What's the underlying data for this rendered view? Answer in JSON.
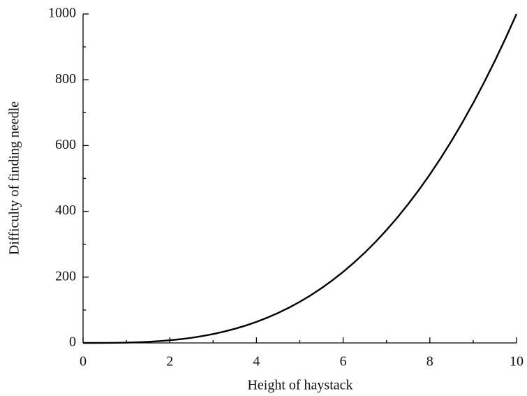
{
  "chart_data": {
    "type": "line",
    "xlabel": "Height of haystack",
    "ylabel": "Difficulty of finding needle",
    "x": [
      0,
      0.25,
      0.5,
      0.75,
      1,
      1.25,
      1.5,
      1.75,
      2,
      2.25,
      2.5,
      2.75,
      3,
      3.25,
      3.5,
      3.75,
      4,
      4.25,
      4.5,
      4.75,
      5,
      5.25,
      5.5,
      5.75,
      6,
      6.25,
      6.5,
      6.75,
      7,
      7.25,
      7.5,
      7.75,
      8,
      8.25,
      8.5,
      8.75,
      9,
      9.25,
      9.5,
      9.75,
      10
    ],
    "series": [
      {
        "color": "#000000",
        "values": [
          0,
          0,
          0.1,
          0.4,
          1,
          2,
          3.4,
          5.4,
          8,
          11.4,
          15.6,
          20.8,
          27,
          34.3,
          42.9,
          52.7,
          64,
          76.8,
          91.1,
          107.2,
          125,
          144.7,
          166.4,
          190.1,
          216,
          244.1,
          274.6,
          307.5,
          343,
          381.1,
          421.9,
          465.5,
          512,
          561.5,
          614.1,
          669.9,
          729,
          791.5,
          857.4,
          926.9,
          1000
        ]
      }
    ],
    "xlim": [
      0,
      10
    ],
    "xticks": [
      0,
      2,
      4,
      6,
      8,
      10
    ],
    "xminorticks": [
      1,
      3,
      5,
      7,
      9
    ],
    "ylim": [
      0,
      1000
    ],
    "yticks": [
      0,
      200,
      400,
      600,
      800,
      1000
    ],
    "yminorticks": [
      100,
      300,
      500,
      700,
      900
    ],
    "grid": false
  }
}
